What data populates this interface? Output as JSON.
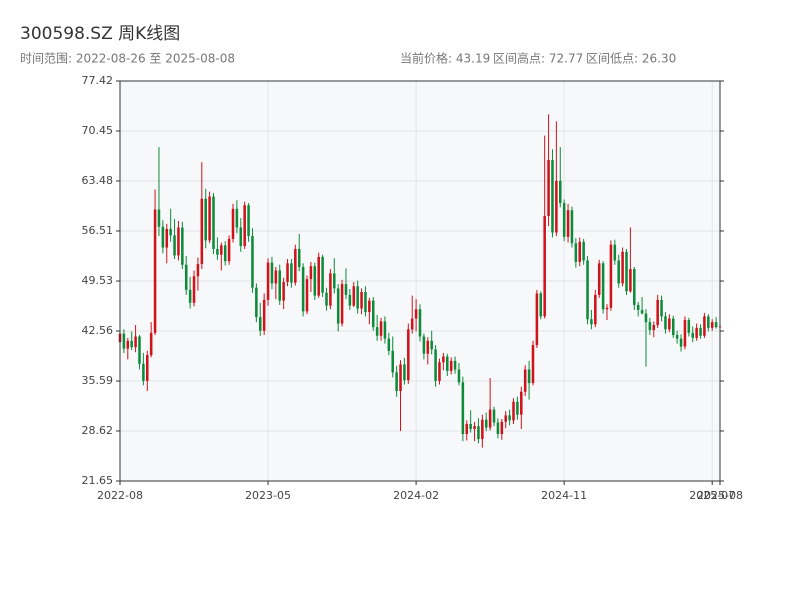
{
  "chart_data": {
    "type": "candlestick",
    "title": "300598.SZ 周K线图",
    "subtitle": "时间范围: 2022-08-26 至 2025-08-08",
    "stats": [
      "当前价格: 43.19",
      "区间高点: 72.77",
      "区间低点: 26.30"
    ],
    "up_color": "#d0121b",
    "down_color": "#0d8a3a",
    "ylim": [
      21.65,
      77.42
    ],
    "yticks": [
      21.65,
      28.62,
      35.59,
      42.56,
      49.53,
      56.51,
      63.48,
      70.45,
      77.42
    ],
    "xlim": [
      0,
      154
    ],
    "xticks": [
      {
        "value": 0,
        "label": "2022-08"
      },
      {
        "value": 38,
        "label": "2023-05"
      },
      {
        "value": 76,
        "label": "2024-02"
      },
      {
        "value": 114,
        "label": "2024-11"
      },
      {
        "value": 152,
        "label": "2025-07"
      },
      {
        "value": 154,
        "label": "2025-08"
      }
    ],
    "grid": true,
    "ohlc": [
      [
        41.0,
        43.5,
        39.8,
        42.2
      ],
      [
        42.2,
        42.8,
        39.5,
        40.1
      ],
      [
        40.1,
        41.6,
        38.6,
        41.2
      ],
      [
        41.2,
        42.5,
        39.9,
        40.3
      ],
      [
        40.3,
        43.4,
        39.6,
        41.8
      ],
      [
        41.8,
        42.0,
        37.2,
        38.0
      ],
      [
        38.0,
        39.5,
        35.0,
        35.6
      ],
      [
        35.6,
        39.8,
        34.2,
        39.2
      ],
      [
        39.2,
        43.8,
        38.9,
        42.3
      ],
      [
        42.3,
        62.3,
        42.0,
        59.5
      ],
      [
        59.5,
        68.2,
        55.8,
        57.1
      ],
      [
        57.1,
        58.0,
        53.4,
        54.2
      ],
      [
        54.2,
        57.5,
        52.0,
        56.8
      ],
      [
        56.8,
        59.6,
        55.0,
        55.9
      ],
      [
        55.9,
        58.2,
        52.6,
        53.1
      ],
      [
        53.1,
        57.9,
        52.4,
        57.0
      ],
      [
        57.0,
        57.8,
        51.2,
        51.8
      ],
      [
        51.8,
        53.0,
        47.6,
        48.3
      ],
      [
        48.3,
        50.1,
        45.7,
        46.5
      ],
      [
        46.5,
        51.0,
        46.0,
        50.2
      ],
      [
        50.2,
        52.8,
        48.2,
        51.9
      ],
      [
        51.9,
        66.1,
        51.2,
        61.0
      ],
      [
        61.0,
        62.4,
        54.1,
        55.2
      ],
      [
        55.2,
        62.0,
        54.8,
        61.3
      ],
      [
        61.3,
        61.8,
        53.3,
        54.0
      ],
      [
        54.0,
        55.6,
        52.5,
        53.2
      ],
      [
        53.2,
        54.9,
        51.0,
        54.5
      ],
      [
        54.5,
        55.1,
        51.7,
        52.3
      ],
      [
        52.3,
        55.9,
        51.8,
        55.4
      ],
      [
        55.4,
        60.3,
        54.9,
        59.6
      ],
      [
        59.6,
        60.8,
        56.2,
        57.0
      ],
      [
        57.0,
        58.3,
        53.6,
        54.4
      ],
      [
        54.4,
        60.6,
        54.0,
        60.1
      ],
      [
        60.1,
        60.4,
        55.0,
        55.8
      ],
      [
        55.8,
        56.9,
        47.9,
        48.6
      ],
      [
        48.6,
        49.2,
        43.8,
        44.5
      ],
      [
        44.5,
        46.5,
        41.9,
        42.6
      ],
      [
        42.6,
        47.8,
        42.0,
        46.9
      ],
      [
        46.9,
        52.7,
        46.1,
        52.1
      ],
      [
        52.1,
        52.9,
        48.4,
        49.2
      ],
      [
        49.2,
        51.5,
        47.0,
        51.0
      ],
      [
        51.0,
        51.8,
        46.2,
        46.8
      ],
      [
        46.8,
        50.0,
        45.6,
        49.4
      ],
      [
        49.4,
        52.6,
        48.8,
        52.0
      ],
      [
        52.0,
        52.6,
        48.6,
        49.3
      ],
      [
        49.3,
        54.6,
        48.9,
        54.0
      ],
      [
        54.0,
        56.1,
        50.9,
        51.5
      ],
      [
        51.5,
        52.0,
        44.6,
        45.3
      ],
      [
        45.3,
        50.3,
        44.9,
        49.8
      ],
      [
        49.8,
        52.2,
        48.0,
        51.6
      ],
      [
        51.6,
        52.1,
        46.9,
        47.5
      ],
      [
        47.5,
        53.5,
        47.2,
        52.9
      ],
      [
        52.9,
        53.2,
        47.3,
        47.9
      ],
      [
        47.9,
        48.6,
        45.4,
        46.1
      ],
      [
        46.1,
        51.2,
        45.6,
        50.6
      ],
      [
        50.6,
        52.7,
        47.8,
        48.5
      ],
      [
        48.5,
        49.1,
        42.5,
        43.6
      ],
      [
        43.6,
        49.7,
        43.2,
        49.1
      ],
      [
        49.1,
        51.3,
        47.0,
        47.6
      ],
      [
        47.6,
        48.4,
        45.5,
        46.1
      ],
      [
        46.1,
        49.4,
        45.9,
        48.8
      ],
      [
        48.8,
        49.6,
        45.0,
        45.7
      ],
      [
        45.7,
        48.5,
        44.9,
        48.0
      ],
      [
        48.0,
        48.8,
        44.6,
        45.2
      ],
      [
        45.2,
        47.2,
        43.5,
        46.8
      ],
      [
        46.8,
        47.3,
        42.6,
        43.1
      ],
      [
        43.1,
        44.8,
        41.2,
        41.9
      ],
      [
        41.9,
        44.4,
        41.2,
        43.9
      ],
      [
        43.9,
        44.6,
        40.8,
        41.5
      ],
      [
        41.5,
        42.3,
        39.2,
        39.8
      ],
      [
        39.8,
        41.8,
        36.1,
        36.8
      ],
      [
        36.8,
        37.7,
        33.4,
        34.2
      ],
      [
        34.2,
        38.5,
        28.6,
        37.9
      ],
      [
        37.9,
        38.8,
        35.1,
        35.7
      ],
      [
        35.7,
        43.6,
        35.2,
        42.8
      ],
      [
        42.8,
        47.5,
        42.2,
        44.3
      ],
      [
        44.3,
        47.0,
        42.5,
        45.6
      ],
      [
        45.6,
        46.3,
        41.1,
        41.8
      ],
      [
        41.8,
        42.2,
        38.6,
        39.4
      ],
      [
        39.4,
        41.7,
        37.9,
        41.2
      ],
      [
        41.2,
        42.6,
        39.3,
        40.0
      ],
      [
        40.0,
        40.6,
        34.8,
        35.6
      ],
      [
        35.6,
        38.7,
        35.1,
        38.2
      ],
      [
        38.2,
        39.5,
        37.1,
        39.0
      ],
      [
        39.0,
        39.4,
        36.3,
        37.0
      ],
      [
        37.0,
        38.9,
        36.5,
        38.4
      ],
      [
        38.4,
        39.0,
        36.6,
        37.2
      ],
      [
        37.2,
        38.1,
        35.0,
        35.4
      ],
      [
        35.4,
        36.2,
        27.2,
        28.2
      ],
      [
        28.2,
        30.1,
        27.3,
        29.6
      ],
      [
        29.6,
        31.5,
        28.4,
        28.9
      ],
      [
        28.9,
        29.9,
        27.2,
        29.3
      ],
      [
        29.3,
        30.4,
        26.9,
        27.5
      ],
      [
        27.5,
        30.9,
        26.3,
        30.2
      ],
      [
        30.2,
        31.2,
        28.6,
        29.1
      ],
      [
        29.1,
        36.0,
        28.7,
        31.6
      ],
      [
        31.6,
        32.0,
        29.3,
        29.8
      ],
      [
        29.8,
        30.4,
        27.6,
        28.2
      ],
      [
        28.2,
        30.3,
        27.4,
        29.9
      ],
      [
        29.9,
        31.4,
        29.0,
        30.8
      ],
      [
        30.8,
        31.6,
        29.4,
        30.1
      ],
      [
        30.1,
        33.2,
        29.6,
        32.7
      ],
      [
        32.7,
        33.4,
        30.2,
        30.9
      ],
      [
        30.9,
        34.8,
        28.9,
        34.1
      ],
      [
        34.1,
        37.8,
        33.5,
        37.2
      ],
      [
        37.2,
        38.4,
        33.0,
        35.3
      ],
      [
        35.3,
        41.2,
        35.0,
        40.6
      ],
      [
        40.6,
        48.3,
        40.2,
        47.8
      ],
      [
        47.8,
        48.1,
        44.2,
        44.6
      ],
      [
        44.6,
        69.8,
        44.3,
        58.6
      ],
      [
        58.6,
        72.77,
        57.2,
        66.4
      ],
      [
        66.4,
        67.9,
        55.6,
        56.3
      ],
      [
        56.3,
        71.8,
        55.8,
        63.5
      ],
      [
        63.5,
        68.2,
        59.8,
        60.4
      ],
      [
        60.4,
        60.9,
        55.1,
        55.7
      ],
      [
        55.7,
        60.3,
        54.9,
        59.4
      ],
      [
        59.4,
        59.9,
        54.2,
        54.8
      ],
      [
        54.8,
        55.5,
        51.4,
        52.2
      ],
      [
        52.2,
        55.6,
        51.6,
        55.0
      ],
      [
        55.0,
        55.4,
        51.8,
        52.4
      ],
      [
        52.4,
        53.0,
        43.5,
        44.2
      ],
      [
        44.2,
        45.5,
        42.8,
        43.5
      ],
      [
        43.5,
        48.3,
        43.1,
        47.6
      ],
      [
        47.6,
        52.5,
        47.2,
        52.0
      ],
      [
        52.0,
        52.3,
        45.0,
        45.6
      ],
      [
        45.6,
        46.3,
        44.1,
        45.8
      ],
      [
        45.8,
        55.2,
        45.4,
        54.6
      ],
      [
        54.6,
        55.3,
        51.8,
        52.4
      ],
      [
        52.4,
        53.2,
        48.6,
        49.2
      ],
      [
        49.2,
        54.2,
        48.8,
        53.6
      ],
      [
        53.6,
        54.0,
        47.6,
        48.1
      ],
      [
        48.1,
        57.0,
        47.9,
        51.2
      ],
      [
        51.2,
        51.5,
        45.5,
        46.2
      ],
      [
        46.2,
        46.6,
        44.6,
        45.5
      ],
      [
        45.5,
        47.3,
        44.9,
        45.0
      ],
      [
        45.0,
        45.6,
        37.6,
        43.8
      ],
      [
        43.8,
        44.4,
        42.0,
        42.7
      ],
      [
        42.7,
        43.9,
        41.7,
        43.4
      ],
      [
        43.4,
        47.6,
        43.0,
        46.9
      ],
      [
        46.9,
        47.5,
        43.9,
        44.6
      ],
      [
        44.6,
        45.2,
        42.2,
        42.8
      ],
      [
        42.8,
        44.9,
        42.4,
        44.3
      ],
      [
        44.3,
        44.7,
        41.6,
        42.0
      ],
      [
        42.0,
        42.6,
        40.8,
        41.5
      ],
      [
        41.5,
        42.1,
        39.7,
        40.4
      ],
      [
        40.4,
        44.6,
        40.0,
        44.1
      ],
      [
        44.1,
        44.4,
        41.8,
        42.3
      ],
      [
        42.3,
        43.2,
        41.0,
        41.6
      ],
      [
        41.6,
        43.6,
        41.2,
        43.0
      ],
      [
        43.0,
        43.5,
        41.5,
        41.9
      ],
      [
        41.9,
        45.1,
        41.6,
        44.6
      ],
      [
        44.6,
        44.9,
        42.5,
        43.0
      ],
      [
        43.0,
        44.2,
        42.6,
        43.8
      ],
      [
        43.8,
        44.5,
        42.9,
        43.1
      ],
      [
        43.1,
        45.0,
        42.7,
        43.19
      ]
    ]
  }
}
